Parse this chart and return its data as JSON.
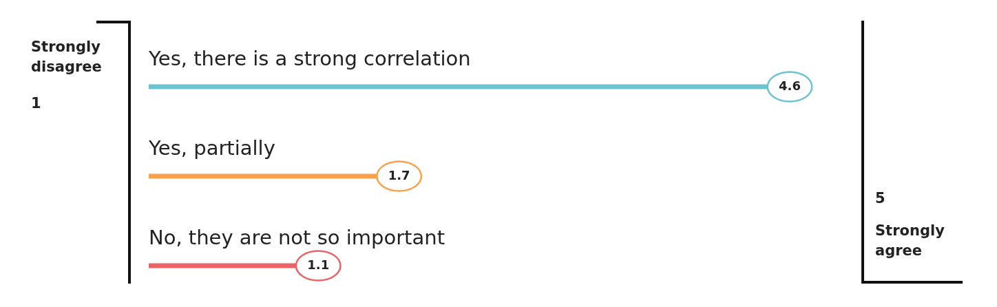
{
  "chart_data": {
    "type": "bar",
    "orientation": "horizontal",
    "categories": [
      "Yes, there is a strong correlation",
      "Yes, partially",
      "No, they are not so important"
    ],
    "values": [
      4.6,
      1.7,
      1.1
    ],
    "colors": [
      "#6cc3cf",
      "#f8a24d",
      "#e86466"
    ],
    "annotations": [
      "Strongly disagree",
      "1",
      "5",
      "Strongly agree"
    ],
    "data_labels": true
  }
}
